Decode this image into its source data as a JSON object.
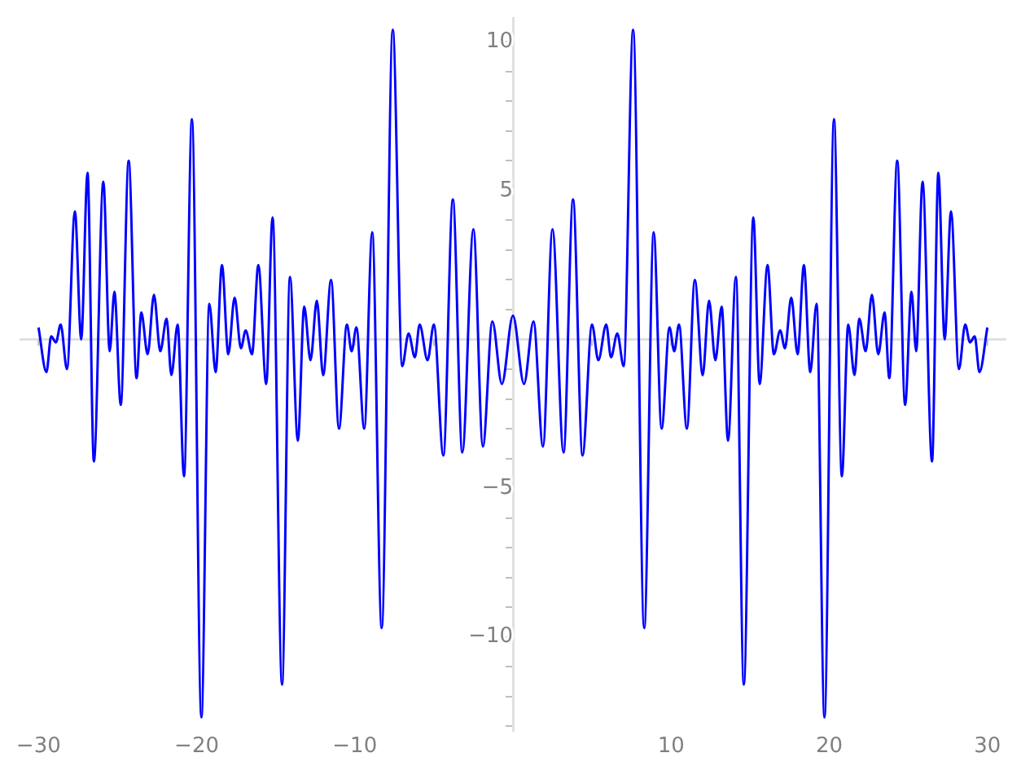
{
  "chart_data": {
    "type": "line",
    "x": [
      -30.0,
      -29.5,
      -29.2,
      -28.9,
      -28.6,
      -28.2,
      -27.7,
      -27.3,
      -26.9,
      -26.5,
      -25.9,
      -25.5,
      -25.2,
      -24.8,
      -24.3,
      -23.8,
      -23.5,
      -23.1,
      -22.7,
      -22.3,
      -21.9,
      -21.6,
      -21.2,
      -20.8,
      -20.3,
      -19.7,
      -19.2,
      -18.8,
      -18.4,
      -18.0,
      -17.6,
      -17.2,
      -16.9,
      -16.5,
      -16.1,
      -15.6,
      -15.2,
      -14.6,
      -14.1,
      -13.6,
      -13.2,
      -12.8,
      -12.4,
      -12.0,
      -11.5,
      -11.0,
      -10.5,
      -10.2,
      -9.9,
      -9.4,
      -8.9,
      -8.3,
      -7.6,
      -7.0,
      -6.6,
      -6.2,
      -5.9,
      -5.4,
      -5.0,
      -4.4,
      -3.8,
      -3.2,
      -2.5,
      -1.9,
      -1.3,
      -0.7,
      0,
      0.7,
      1.3,
      1.9,
      2.5,
      3.2,
      3.8,
      4.4,
      5.0,
      5.4,
      5.9,
      6.2,
      6.6,
      7.0,
      7.6,
      8.3,
      8.9,
      9.4,
      9.9,
      10.2,
      10.5,
      11.0,
      11.5,
      12.0,
      12.4,
      12.8,
      13.2,
      13.6,
      14.1,
      14.6,
      15.2,
      15.6,
      16.1,
      16.5,
      16.9,
      17.2,
      17.6,
      18.0,
      18.4,
      18.8,
      19.2,
      19.7,
      20.3,
      20.8,
      21.2,
      21.6,
      21.9,
      22.3,
      22.7,
      23.1,
      23.5,
      23.8,
      24.3,
      24.8,
      25.2,
      25.5,
      25.9,
      26.5,
      26.9,
      27.3,
      27.7,
      28.2,
      28.6,
      28.9,
      29.2,
      29.5,
      30.0
    ],
    "series": [
      {
        "color": "#0000ff",
        "values": [
          0.4,
          -1.1,
          0.1,
          -0.1,
          0.5,
          -1.0,
          4.3,
          0.0,
          5.6,
          -4.1,
          5.3,
          -0.4,
          1.6,
          -2.2,
          6.0,
          -1.3,
          0.9,
          -0.5,
          1.5,
          -0.4,
          0.7,
          -1.2,
          0.5,
          -4.6,
          7.4,
          -12.7,
          1.2,
          -1.1,
          2.5,
          -0.5,
          1.4,
          -0.3,
          0.3,
          -0.5,
          2.5,
          -1.5,
          4.1,
          -11.6,
          2.1,
          -3.4,
          1.1,
          -0.7,
          1.3,
          -1.2,
          2.0,
          -3.0,
          0.5,
          -0.4,
          0.4,
          -3.0,
          3.6,
          -9.7,
          10.4,
          -0.9,
          0.2,
          -0.6,
          0.5,
          -0.7,
          0.5,
          -3.9,
          4.7,
          -3.8,
          3.7,
          -3.6,
          0.6,
          -1.5,
          0.8,
          -1.5,
          0.6,
          -3.6,
          3.7,
          -3.8,
          4.7,
          -3.9,
          0.5,
          -0.7,
          0.5,
          -0.6,
          0.2,
          -0.9,
          10.4,
          -9.7,
          3.6,
          -3.0,
          0.4,
          -0.4,
          0.5,
          -3.0,
          2.0,
          -1.2,
          1.3,
          -0.7,
          1.1,
          -3.4,
          2.1,
          -11.6,
          4.1,
          -1.5,
          2.5,
          -0.5,
          0.3,
          -0.3,
          1.4,
          -0.5,
          2.5,
          -1.1,
          1.2,
          -12.7,
          7.4,
          -4.6,
          0.5,
          -1.2,
          0.7,
          -0.4,
          1.5,
          -0.5,
          0.9,
          -1.3,
          6.0,
          -2.2,
          1.6,
          -0.4,
          5.3,
          -4.1,
          5.6,
          0.0,
          4.3,
          -1.0,
          0.5,
          -0.1,
          0.1,
          -1.1,
          0.4
        ]
      }
    ],
    "xlim": [
      -31.2,
      31.2
    ],
    "ylim": [
      -13.15,
      10.8
    ],
    "xticks": [
      {
        "value": -30,
        "label": "−30"
      },
      {
        "value": -25,
        "label": null
      },
      {
        "value": -20,
        "label": "−20"
      },
      {
        "value": -15,
        "label": null
      },
      {
        "value": -10,
        "label": "−10"
      },
      {
        "value": -5,
        "label": null
      },
      {
        "value": 5,
        "label": null
      },
      {
        "value": 10,
        "label": "10"
      },
      {
        "value": 15,
        "label": null
      },
      {
        "value": 20,
        "label": "20"
      },
      {
        "value": 25,
        "label": null
      },
      {
        "value": 30,
        "label": "30"
      }
    ],
    "yticks": [
      {
        "value": -13,
        "label": null
      },
      {
        "value": -12,
        "label": null
      },
      {
        "value": -11,
        "label": null
      },
      {
        "value": -10,
        "label": "−10"
      },
      {
        "value": -9,
        "label": null
      },
      {
        "value": -8,
        "label": null
      },
      {
        "value": -7,
        "label": null
      },
      {
        "value": -6,
        "label": null
      },
      {
        "value": -5,
        "label": "−5"
      },
      {
        "value": -4,
        "label": null
      },
      {
        "value": -3,
        "label": null
      },
      {
        "value": -2,
        "label": null
      },
      {
        "value": -1,
        "label": null
      },
      {
        "value": 1,
        "label": null
      },
      {
        "value": 2,
        "label": null
      },
      {
        "value": 3,
        "label": null
      },
      {
        "value": 4,
        "label": null
      },
      {
        "value": 5,
        "label": "5"
      },
      {
        "value": 6,
        "label": null
      },
      {
        "value": 7,
        "label": null
      },
      {
        "value": 8,
        "label": null
      },
      {
        "value": 9,
        "label": null
      },
      {
        "value": 10,
        "label": "10"
      }
    ]
  }
}
